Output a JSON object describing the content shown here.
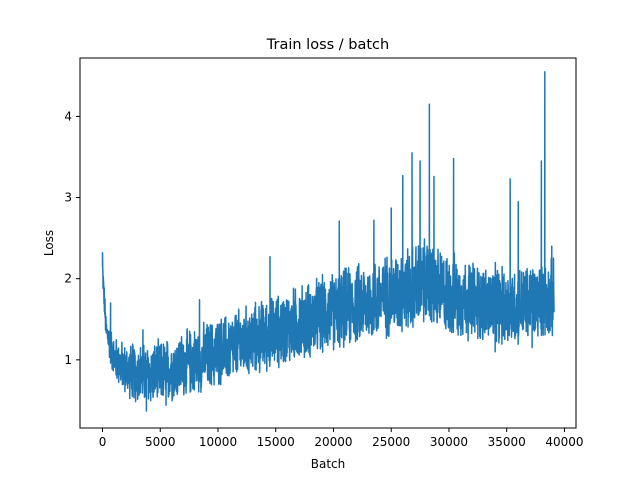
{
  "chart_data": {
    "type": "line",
    "title": "Train loss / batch",
    "xlabel": "Batch",
    "ylabel": "Loss",
    "xlim": [
      -1950,
      41000
    ],
    "ylim": [
      0.16,
      4.72
    ],
    "xticks": [
      0,
      5000,
      10000,
      15000,
      20000,
      25000,
      30000,
      35000,
      40000
    ],
    "yticks": [
      1,
      2,
      3,
      4
    ],
    "grid": false,
    "legend": "none",
    "series": [
      {
        "color": "#1f77b4",
        "x_start": 0,
        "x_end": 39100,
        "baseline": {
          "x": [
            0,
            300,
            1000,
            2000,
            3000,
            4000,
            5000,
            7000,
            10000,
            15000,
            20000,
            25000,
            28000,
            30000,
            33000,
            35000,
            37000,
            38000,
            39100
          ],
          "y": [
            2.1,
            1.35,
            1.0,
            0.85,
            0.8,
            0.78,
            0.8,
            0.9,
            1.05,
            1.3,
            1.55,
            1.75,
            1.9,
            1.75,
            1.65,
            1.6,
            1.65,
            1.7,
            1.7
          ]
        },
        "spread": {
          "x": [
            0,
            1000,
            3000,
            10000,
            20000,
            28000,
            33000,
            39100
          ],
          "y": [
            0.15,
            0.25,
            0.35,
            0.4,
            0.45,
            0.5,
            0.45,
            0.45
          ]
        },
        "peaks": [
          {
            "x": 0,
            "y": 2.32
          },
          {
            "x": 700,
            "y": 1.7
          },
          {
            "x": 3500,
            "y": 1.37
          },
          {
            "x": 8400,
            "y": 1.74
          },
          {
            "x": 14500,
            "y": 2.27
          },
          {
            "x": 20500,
            "y": 2.71
          },
          {
            "x": 23500,
            "y": 2.72
          },
          {
            "x": 25000,
            "y": 2.87
          },
          {
            "x": 26000,
            "y": 3.27
          },
          {
            "x": 26800,
            "y": 3.55
          },
          {
            "x": 27500,
            "y": 3.45
          },
          {
            "x": 28300,
            "y": 4.15
          },
          {
            "x": 28700,
            "y": 3.26
          },
          {
            "x": 30400,
            "y": 3.48
          },
          {
            "x": 34200,
            "y": 2.1
          },
          {
            "x": 35300,
            "y": 3.23
          },
          {
            "x": 36000,
            "y": 2.95
          },
          {
            "x": 38000,
            "y": 3.45
          },
          {
            "x": 38300,
            "y": 4.55
          },
          {
            "x": 38900,
            "y": 2.4
          }
        ],
        "troughs": [
          {
            "x": 3800,
            "y": 0.37
          },
          {
            "x": 5500,
            "y": 0.44
          },
          {
            "x": 34000,
            "y": 1.1
          },
          {
            "x": 37200,
            "y": 1.15
          }
        ]
      }
    ]
  }
}
